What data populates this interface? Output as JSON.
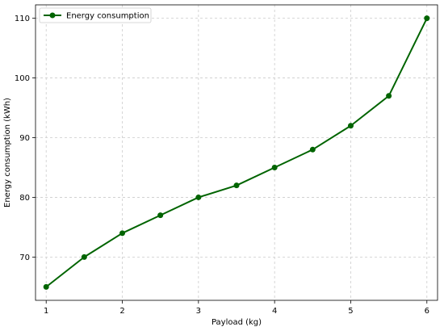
{
  "chart_data": {
    "type": "line",
    "title": "",
    "xlabel": "Payload (kg)",
    "ylabel": "Energy consumption (kWh)",
    "xlim": [
      0.86,
      6.14
    ],
    "ylim": [
      62.75,
      112.25
    ],
    "xticks": [
      1,
      2,
      3,
      4,
      5,
      6
    ],
    "yticks": [
      70,
      80,
      90,
      100,
      110
    ],
    "grid": true,
    "legend_position": "top-left",
    "series": [
      {
        "name": "Energy consumption",
        "color": "#006400",
        "marker": "circle",
        "x": [
          1,
          1.5,
          2,
          2.5,
          3,
          3.5,
          4,
          4.5,
          5,
          5.5,
          6
        ],
        "y": [
          65,
          70,
          74,
          77,
          80,
          82,
          85,
          88,
          92,
          97,
          110
        ]
      }
    ]
  }
}
